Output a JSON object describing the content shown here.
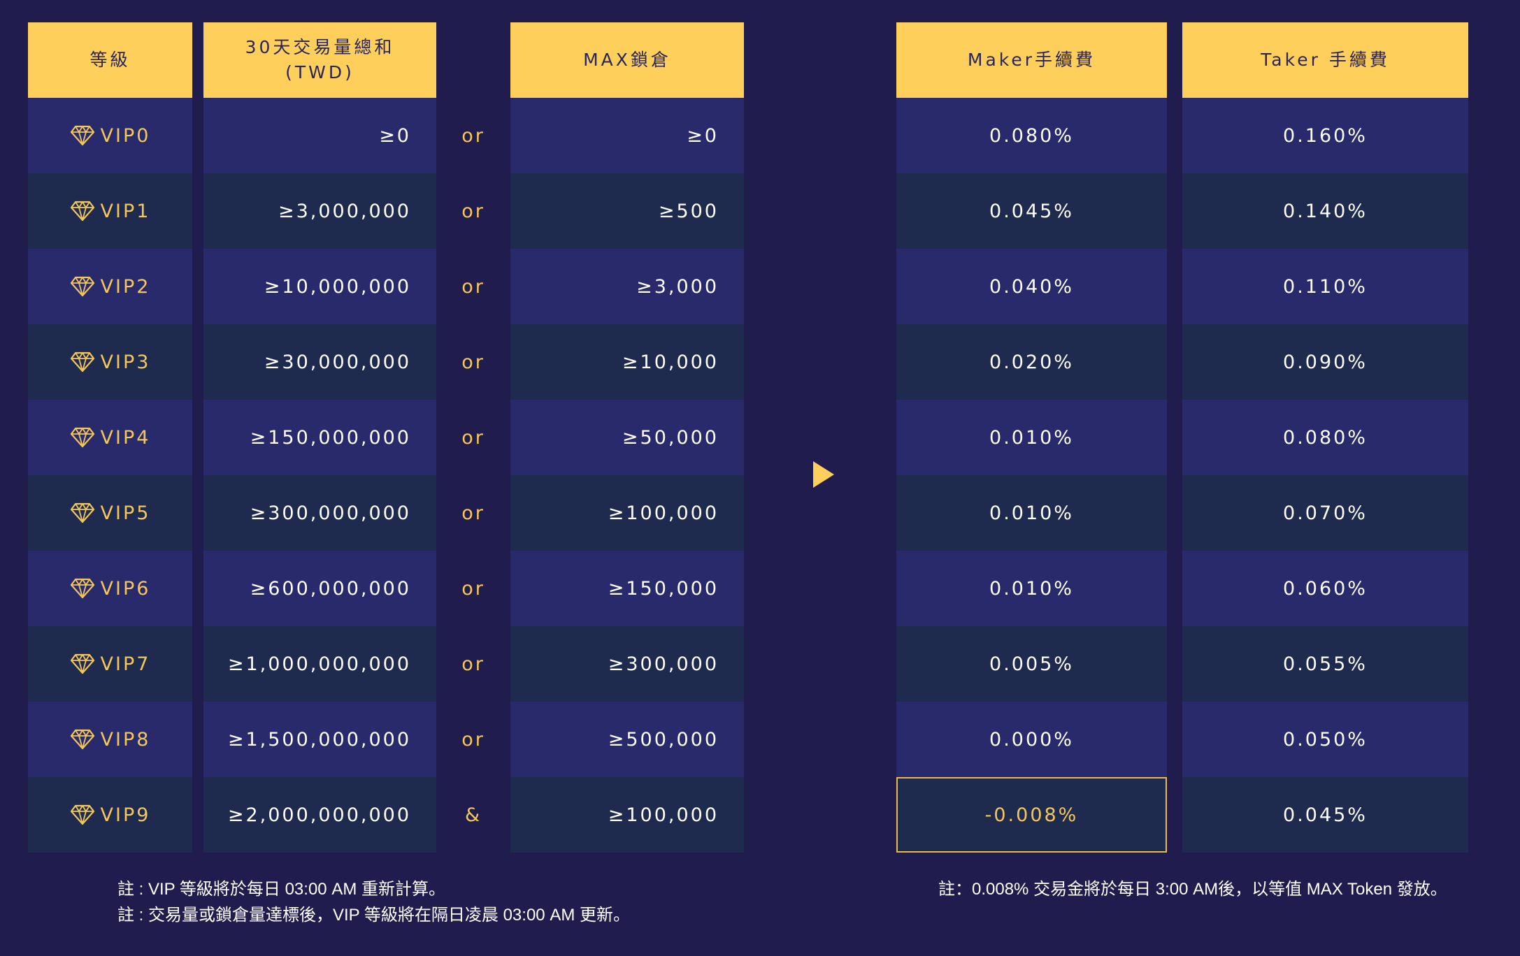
{
  "headers": {
    "level": "等級",
    "volume": "30天交易量總和\n(TWD)",
    "lock": "MAX鎖倉",
    "maker": "Maker手續費",
    "taker": "Taker 手續費"
  },
  "rows": [
    {
      "level": "VIP0",
      "volume": "≥0",
      "op": "or",
      "lock": "≥0",
      "maker": "0.080%",
      "taker": "0.160%"
    },
    {
      "level": "VIP1",
      "volume": "≥3,000,000",
      "op": "or",
      "lock": "≥500",
      "maker": "0.045%",
      "taker": "0.140%"
    },
    {
      "level": "VIP2",
      "volume": "≥10,000,000",
      "op": "or",
      "lock": "≥3,000",
      "maker": "0.040%",
      "taker": "0.110%"
    },
    {
      "level": "VIP3",
      "volume": "≥30,000,000",
      "op": "or",
      "lock": "≥10,000",
      "maker": "0.020%",
      "taker": "0.090%"
    },
    {
      "level": "VIP4",
      "volume": "≥150,000,000",
      "op": "or",
      "lock": "≥50,000",
      "maker": "0.010%",
      "taker": "0.080%"
    },
    {
      "level": "VIP5",
      "volume": "≥300,000,000",
      "op": "or",
      "lock": "≥100,000",
      "maker": "0.010%",
      "taker": "0.070%"
    },
    {
      "level": "VIP6",
      "volume": "≥600,000,000",
      "op": "or",
      "lock": "≥150,000",
      "maker": "0.010%",
      "taker": "0.060%"
    },
    {
      "level": "VIP7",
      "volume": "≥1,000,000,000",
      "op": "or",
      "lock": "≥300,000",
      "maker": "0.005%",
      "taker": "0.055%"
    },
    {
      "level": "VIP8",
      "volume": "≥1,500,000,000",
      "op": "or",
      "lock": "≥500,000",
      "maker": "0.000%",
      "taker": "0.050%"
    },
    {
      "level": "VIP9",
      "volume": "≥2,000,000,000",
      "op": "&",
      "lock": "≥100,000",
      "maker": "-0.008%",
      "taker": "0.045%"
    }
  ],
  "notes": {
    "left_1": "註 : VIP 等級將於每日 03:00 AM 重新計算。",
    "left_2": "註 : 交易量或鎖倉量達標後，VIP 等級將在隔日凌晨 03:00 AM 更新。",
    "right_1": "註：0.008% 交易金將於每日 3:00 AM後，以等值 MAX Token 發放。"
  },
  "colors": {
    "background": "#201c4e",
    "header": "#ffcf5c",
    "row_odd": "#292a6b",
    "row_even": "#1f2a4f",
    "accent": "#f3c75a"
  },
  "icons": {
    "level": "diamond-icon",
    "arrow": "play-arrow-icon"
  }
}
